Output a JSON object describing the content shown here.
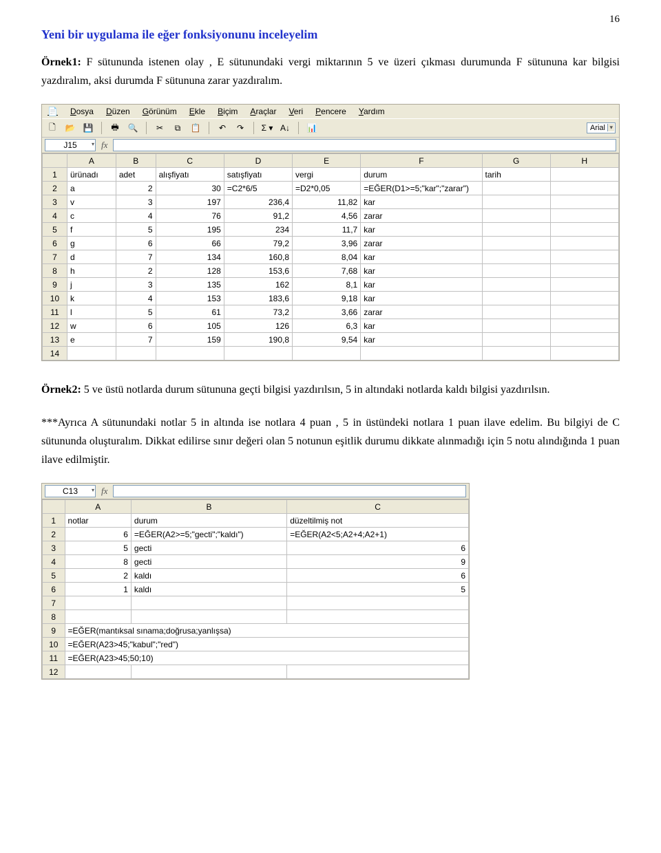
{
  "page_number": "16",
  "heading": "Yeni bir uygulama ile eğer fonksiyonunu inceleyelim",
  "para1_prefix": "Örnek1:",
  "para1": " F sütununda istenen olay , E sütunundaki vergi miktarının 5 ve üzeri çıkması durumunda F sütununa kar bilgisi yazdıralım, aksi durumda F sütununa zarar yazdıralım.",
  "para2_prefix": "Örnek2:",
  "para2": " 5 ve üstü notlarda durum sütununa geçti bilgisi yazdırılsın, 5 in altındaki notlarda kaldı bilgisi yazdırılsın.",
  "para3": "***Ayrıca A sütunundaki notlar 5 in altında ise notlara 4 puan , 5 in üstündeki notlara 1 puan ilave edelim. Bu bilgiyi de C sütununda oluşturalım. Dikkat edilirse sınır değeri olan 5 notunun eşitlik durumu dikkate alınmadığı için 5 notu alındığında 1 puan ilave edilmiştir.",
  "ss1": {
    "menu": [
      "Dosya",
      "Düzen",
      "Görünüm",
      "Ekle",
      "Biçim",
      "Araçlar",
      "Veri",
      "Pencere",
      "Yardım"
    ],
    "font_name": "Arial",
    "namebox": "J15",
    "fx_value": "",
    "columns": [
      "A",
      "B",
      "C",
      "D",
      "E",
      "F",
      "G",
      "H"
    ],
    "gridline_color": "#c0c0c0",
    "header_bg": "#ece9d8",
    "rows": [
      {
        "n": "1",
        "A": "ürünadı",
        "B": "adet",
        "C": "alışfiyatı",
        "D": "satışfiyatı",
        "E": "vergi",
        "F": "durum",
        "G": "tarih",
        "H": "",
        "align": [
          "txt",
          "txt",
          "txt",
          "txt",
          "txt",
          "txt",
          "txt",
          "txt"
        ]
      },
      {
        "n": "2",
        "A": "a",
        "B": "2",
        "C": "30",
        "D": "=C2*6/5",
        "E": "=D2*0,05",
        "F": "=EĞER(D1>=5;\"kar\";\"zarar\")",
        "G": "",
        "H": "",
        "align": [
          "txt",
          "num",
          "num",
          "txt",
          "txt",
          "txt",
          "txt",
          "txt"
        ]
      },
      {
        "n": "3",
        "A": "v",
        "B": "3",
        "C": "197",
        "D": "236,4",
        "E": "11,82",
        "F": "kar",
        "G": "",
        "H": "",
        "align": [
          "txt",
          "num",
          "num",
          "num",
          "num",
          "txt",
          "txt",
          "txt"
        ]
      },
      {
        "n": "4",
        "A": "c",
        "B": "4",
        "C": "76",
        "D": "91,2",
        "E": "4,56",
        "F": "zarar",
        "G": "",
        "H": "",
        "align": [
          "txt",
          "num",
          "num",
          "num",
          "num",
          "txt",
          "txt",
          "txt"
        ]
      },
      {
        "n": "5",
        "A": "f",
        "B": "5",
        "C": "195",
        "D": "234",
        "E": "11,7",
        "F": "kar",
        "G": "",
        "H": "",
        "align": [
          "txt",
          "num",
          "num",
          "num",
          "num",
          "txt",
          "txt",
          "txt"
        ]
      },
      {
        "n": "6",
        "A": "g",
        "B": "6",
        "C": "66",
        "D": "79,2",
        "E": "3,96",
        "F": "zarar",
        "G": "",
        "H": "",
        "align": [
          "txt",
          "num",
          "num",
          "num",
          "num",
          "txt",
          "txt",
          "txt"
        ]
      },
      {
        "n": "7",
        "A": "d",
        "B": "7",
        "C": "134",
        "D": "160,8",
        "E": "8,04",
        "F": "kar",
        "G": "",
        "H": "",
        "align": [
          "txt",
          "num",
          "num",
          "num",
          "num",
          "txt",
          "txt",
          "txt"
        ]
      },
      {
        "n": "8",
        "A": "h",
        "B": "2",
        "C": "128",
        "D": "153,6",
        "E": "7,68",
        "F": "kar",
        "G": "",
        "H": "",
        "align": [
          "txt",
          "num",
          "num",
          "num",
          "num",
          "txt",
          "txt",
          "txt"
        ]
      },
      {
        "n": "9",
        "A": "j",
        "B": "3",
        "C": "135",
        "D": "162",
        "E": "8,1",
        "F": "kar",
        "G": "",
        "H": "",
        "align": [
          "txt",
          "num",
          "num",
          "num",
          "num",
          "txt",
          "txt",
          "txt"
        ]
      },
      {
        "n": "10",
        "A": "k",
        "B": "4",
        "C": "153",
        "D": "183,6",
        "E": "9,18",
        "F": "kar",
        "G": "",
        "H": "",
        "align": [
          "txt",
          "num",
          "num",
          "num",
          "num",
          "txt",
          "txt",
          "txt"
        ]
      },
      {
        "n": "11",
        "A": "l",
        "B": "5",
        "C": "61",
        "D": "73,2",
        "E": "3,66",
        "F": "zarar",
        "G": "",
        "H": "",
        "align": [
          "txt",
          "num",
          "num",
          "num",
          "num",
          "txt",
          "txt",
          "txt"
        ]
      },
      {
        "n": "12",
        "A": "w",
        "B": "6",
        "C": "105",
        "D": "126",
        "E": "6,3",
        "F": "kar",
        "G": "",
        "H": "",
        "align": [
          "txt",
          "num",
          "num",
          "num",
          "num",
          "txt",
          "txt",
          "txt"
        ]
      },
      {
        "n": "13",
        "A": "e",
        "B": "7",
        "C": "159",
        "D": "190,8",
        "E": "9,54",
        "F": "kar",
        "G": "",
        "H": "",
        "align": [
          "txt",
          "num",
          "num",
          "num",
          "num",
          "txt",
          "txt",
          "txt"
        ]
      },
      {
        "n": "14",
        "A": "",
        "B": "",
        "C": "",
        "D": "",
        "E": "",
        "F": "",
        "G": "",
        "H": "",
        "align": [
          "txt",
          "txt",
          "txt",
          "txt",
          "txt",
          "txt",
          "txt",
          "txt"
        ]
      }
    ]
  },
  "ss2": {
    "namebox": "C13",
    "fx_value": "",
    "columns": [
      "A",
      "B",
      "C"
    ],
    "gridline_color": "#c0c0c0",
    "header_bg": "#ece9d8",
    "rows": [
      {
        "n": "1",
        "A": "notlar",
        "B": "durum",
        "C": "düzeltilmiş not",
        "align": [
          "txt",
          "txt",
          "txt"
        ]
      },
      {
        "n": "2",
        "A": "6",
        "B": "=EĞER(A2>=5;\"gecti\";\"kaldı\")",
        "C": "=EĞER(A2<5;A2+4;A2+1)",
        "align": [
          "num",
          "txt",
          "txt"
        ]
      },
      {
        "n": "3",
        "A": "5",
        "B": "gecti",
        "C": "6",
        "align": [
          "num",
          "txt",
          "num"
        ]
      },
      {
        "n": "4",
        "A": "8",
        "B": "gecti",
        "C": "9",
        "align": [
          "num",
          "txt",
          "num"
        ]
      },
      {
        "n": "5",
        "A": "2",
        "B": "kaldı",
        "C": "6",
        "align": [
          "num",
          "txt",
          "num"
        ]
      },
      {
        "n": "6",
        "A": "1",
        "B": "kaldı",
        "C": "5",
        "align": [
          "num",
          "txt",
          "num"
        ]
      },
      {
        "n": "7",
        "A": "",
        "B": "",
        "C": "",
        "align": [
          "txt",
          "txt",
          "txt"
        ]
      },
      {
        "n": "8",
        "A": "",
        "B": "",
        "C": "",
        "align": [
          "txt",
          "txt",
          "txt"
        ]
      },
      {
        "n": "9",
        "A": "=EĞER(mantıksal sınama;doğrusa;yanlışsa)",
        "B": "",
        "C": "",
        "align": [
          "txt",
          "txt",
          "txt"
        ]
      },
      {
        "n": "10",
        "A": "=EĞER(A23>45;\"kabul\";\"red\")",
        "B": "",
        "C": "",
        "align": [
          "txt",
          "txt",
          "txt"
        ]
      },
      {
        "n": "11",
        "A": "=EĞER(A23>45;50;10)",
        "B": "",
        "C": "",
        "align": [
          "txt",
          "txt",
          "txt"
        ]
      },
      {
        "n": "12",
        "A": "",
        "B": "",
        "C": "",
        "align": [
          "txt",
          "txt",
          "txt"
        ]
      }
    ]
  }
}
